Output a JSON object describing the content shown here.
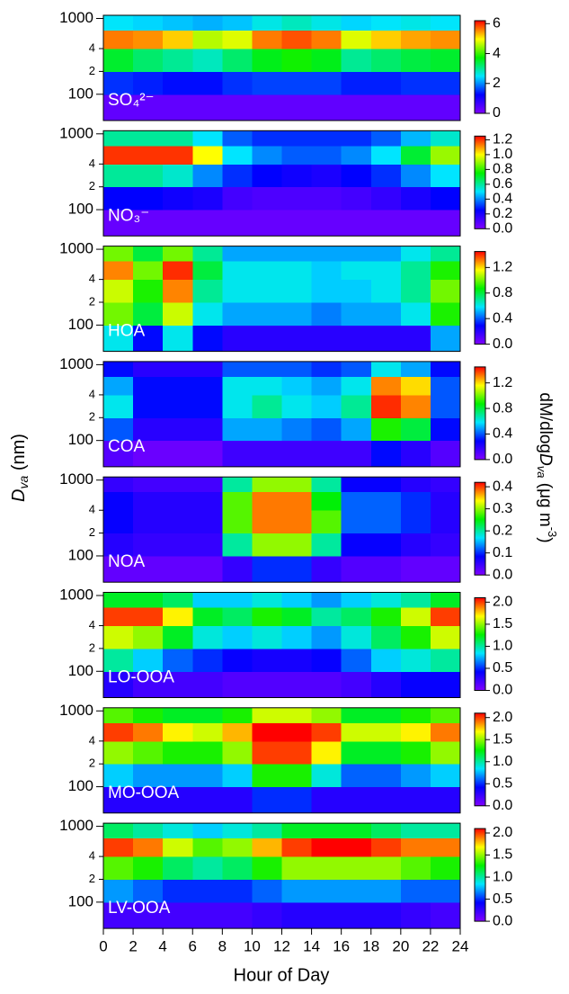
{
  "chart_data": {
    "type": "heatmap",
    "xlabel": "Hour of Day",
    "ylabel": [
      "D",
      "va",
      " (nm)"
    ],
    "colorbar_label": [
      "dM/dlog",
      "D",
      "va",
      " (μg m",
      "-3",
      ")"
    ],
    "xlim": [
      0,
      24
    ],
    "xticks": [
      0,
      2,
      4,
      6,
      8,
      10,
      12,
      14,
      16,
      18,
      20,
      22,
      24
    ],
    "xbins": [
      0,
      2,
      4,
      6,
      8,
      10,
      12,
      14,
      16,
      18,
      20,
      22,
      24
    ],
    "ylim": [
      45,
      1100
    ],
    "log_y": true,
    "yticks": [
      100,
      {
        "value": 200,
        "label": "2"
      },
      {
        "value": 400,
        "label": "4"
      },
      1000
    ],
    "ybins": [
      45,
      100,
      200,
      400,
      700,
      1100
    ],
    "colormap": [
      "#8000ff",
      "#0000ff",
      "#00e5ff",
      "#00f000",
      "#ffff00",
      "#ff0000"
    ],
    "panels": [
      {
        "label": "SO₄²⁻",
        "zlim": [
          0,
          6.2
        ],
        "zticks": [
          0,
          2,
          4,
          6
        ],
        "z": [
          [
            0.3,
            0.3,
            0.3,
            0.3,
            0.3,
            0.3,
            0.3,
            0.3,
            0.3,
            0.3,
            0.3,
            0.3
          ],
          [
            1.5,
            1.4,
            1.3,
            1.3,
            1.5,
            1.6,
            1.6,
            1.6,
            1.4,
            1.4,
            1.5,
            1.5
          ],
          [
            3.5,
            3.2,
            3.0,
            2.8,
            3.2,
            3.6,
            3.8,
            3.6,
            3.0,
            3.2,
            3.4,
            3.5
          ],
          [
            5.6,
            5.5,
            5.2,
            4.6,
            4.8,
            5.6,
            5.8,
            5.6,
            4.8,
            5.2,
            5.4,
            5.5
          ],
          [
            2.5,
            2.4,
            2.3,
            2.2,
            2.3,
            2.6,
            2.8,
            2.6,
            2.4,
            2.5,
            2.6,
            2.5
          ]
        ]
      },
      {
        "label": "NO₃⁻",
        "zlim": [
          0,
          1.25
        ],
        "zticks": [
          {
            "value": 0,
            "label": "0.0"
          },
          0.2,
          0.4,
          0.6,
          0.8,
          {
            "value": 1,
            "label": "1.0"
          },
          1.2
        ],
        "z": [
          [
            0.05,
            0.05,
            0.05,
            0.05,
            0.05,
            0.05,
            0.05,
            0.05,
            0.05,
            0.05,
            0.05,
            0.05
          ],
          [
            0.25,
            0.25,
            0.22,
            0.2,
            0.12,
            0.1,
            0.1,
            0.1,
            0.12,
            0.15,
            0.2,
            0.25
          ],
          [
            0.6,
            0.6,
            0.55,
            0.4,
            0.3,
            0.25,
            0.22,
            0.2,
            0.25,
            0.3,
            0.4,
            0.5
          ],
          [
            1.2,
            1.2,
            1.2,
            1.0,
            0.5,
            0.4,
            0.35,
            0.35,
            0.4,
            0.5,
            0.7,
            0.9
          ],
          [
            0.6,
            0.6,
            0.6,
            0.5,
            0.35,
            0.3,
            0.3,
            0.3,
            0.3,
            0.35,
            0.45,
            0.55
          ]
        ]
      },
      {
        "label": "HOA",
        "zlim": [
          0,
          1.45
        ],
        "zticks": [
          {
            "value": 0,
            "label": "0.0"
          },
          0.4,
          0.8,
          1.2
        ],
        "z": [
          [
            0.6,
            0.3,
            0.6,
            0.3,
            0.2,
            0.2,
            0.2,
            0.2,
            0.2,
            0.2,
            0.2,
            0.5
          ],
          [
            1.0,
            0.8,
            1.1,
            0.6,
            0.5,
            0.5,
            0.5,
            0.45,
            0.5,
            0.5,
            0.6,
            0.9
          ],
          [
            1.1,
            0.9,
            1.3,
            0.7,
            0.6,
            0.6,
            0.6,
            0.55,
            0.55,
            0.6,
            0.7,
            1.0
          ],
          [
            1.3,
            1.0,
            1.4,
            0.8,
            0.6,
            0.6,
            0.6,
            0.55,
            0.6,
            0.6,
            0.7,
            0.9
          ],
          [
            1.0,
            0.8,
            1.0,
            0.7,
            0.5,
            0.5,
            0.5,
            0.5,
            0.5,
            0.5,
            0.6,
            0.7
          ]
        ]
      },
      {
        "label": "COA",
        "zlim": [
          0,
          1.45
        ],
        "zticks": [
          {
            "value": 0,
            "label": "0.0"
          },
          0.4,
          0.8,
          1.2
        ],
        "z": [
          [
            0.1,
            0.05,
            0.05,
            0.05,
            0.15,
            0.15,
            0.15,
            0.15,
            0.15,
            0.3,
            0.2,
            0.1
          ],
          [
            0.4,
            0.2,
            0.2,
            0.2,
            0.5,
            0.5,
            0.45,
            0.4,
            0.5,
            0.9,
            0.8,
            0.3
          ],
          [
            0.6,
            0.3,
            0.3,
            0.3,
            0.6,
            0.7,
            0.6,
            0.55,
            0.7,
            1.4,
            1.3,
            0.4
          ],
          [
            0.5,
            0.3,
            0.3,
            0.3,
            0.6,
            0.6,
            0.55,
            0.5,
            0.6,
            1.3,
            1.2,
            0.4
          ],
          [
            0.3,
            0.2,
            0.2,
            0.2,
            0.4,
            0.4,
            0.4,
            0.35,
            0.4,
            0.6,
            0.5,
            0.3
          ]
        ]
      },
      {
        "label": "NOA",
        "zlim": [
          0,
          0.42
        ],
        "zticks": [
          {
            "value": 0,
            "label": "0.0"
          },
          0.1,
          0.2,
          0.3,
          0.4
        ],
        "z": [
          [
            0.02,
            0.02,
            0.02,
            0.02,
            0.05,
            0.1,
            0.1,
            0.05,
            0.03,
            0.03,
            0.02,
            0.02
          ],
          [
            0.06,
            0.05,
            0.05,
            0.05,
            0.2,
            0.3,
            0.3,
            0.2,
            0.08,
            0.08,
            0.06,
            0.05
          ],
          [
            0.08,
            0.06,
            0.06,
            0.06,
            0.28,
            0.38,
            0.38,
            0.28,
            0.12,
            0.12,
            0.1,
            0.06
          ],
          [
            0.08,
            0.06,
            0.06,
            0.06,
            0.28,
            0.38,
            0.38,
            0.25,
            0.12,
            0.12,
            0.1,
            0.06
          ],
          [
            0.05,
            0.04,
            0.04,
            0.04,
            0.2,
            0.3,
            0.3,
            0.2,
            0.08,
            0.08,
            0.06,
            0.05
          ]
        ]
      },
      {
        "label": "LO-OOA",
        "zlim": [
          0,
          2.1
        ],
        "zticks": [
          {
            "value": 0,
            "label": "0.0"
          },
          0.5,
          {
            "value": 1,
            "label": "1.0"
          },
          1.5,
          {
            "value": 2,
            "label": "2.0"
          }
        ],
        "z": [
          [
            0.3,
            0.2,
            0.2,
            0.2,
            0.15,
            0.15,
            0.15,
            0.15,
            0.2,
            0.3,
            0.4,
            0.4
          ],
          [
            1.0,
            0.8,
            0.6,
            0.5,
            0.4,
            0.35,
            0.35,
            0.4,
            0.6,
            0.8,
            0.9,
            1.0
          ],
          [
            1.6,
            1.5,
            1.2,
            0.9,
            0.8,
            0.9,
            0.8,
            0.7,
            0.9,
            1.1,
            1.3,
            1.6
          ],
          [
            2.0,
            2.0,
            1.7,
            1.2,
            1.1,
            1.3,
            1.2,
            1.0,
            1.1,
            1.3,
            1.6,
            2.0
          ],
          [
            1.2,
            1.2,
            1.1,
            0.8,
            0.8,
            0.9,
            0.8,
            0.7,
            0.8,
            0.9,
            1.0,
            1.2
          ]
        ]
      },
      {
        "label": "MO-OOA",
        "zlim": [
          0,
          2.1
        ],
        "zticks": [
          {
            "value": 0,
            "label": "0.0"
          },
          0.5,
          {
            "value": 1,
            "label": "1.0"
          },
          1.5,
          {
            "value": 2,
            "label": "2.0"
          }
        ],
        "z": [
          [
            0.3,
            0.3,
            0.3,
            0.3,
            0.3,
            0.5,
            0.5,
            0.3,
            0.3,
            0.3,
            0.3,
            0.3
          ],
          [
            0.8,
            0.7,
            0.7,
            0.7,
            0.8,
            1.3,
            1.3,
            0.9,
            0.6,
            0.6,
            0.7,
            0.8
          ],
          [
            1.5,
            1.4,
            1.3,
            1.3,
            1.5,
            2.0,
            2.0,
            1.7,
            1.2,
            1.2,
            1.3,
            1.5
          ],
          [
            2.0,
            1.9,
            1.7,
            1.6,
            1.8,
            2.1,
            2.1,
            2.0,
            1.6,
            1.6,
            1.7,
            1.9
          ],
          [
            1.4,
            1.3,
            1.2,
            1.2,
            1.3,
            1.6,
            1.6,
            1.5,
            1.2,
            1.2,
            1.3,
            1.4
          ]
        ]
      },
      {
        "label": "LV-OOA",
        "zlim": [
          0,
          2.1
        ],
        "zticks": [
          {
            "value": 0,
            "label": "0.0"
          },
          0.5,
          {
            "value": 1,
            "label": "1.0"
          },
          1.5,
          {
            "value": 2,
            "label": "2.0"
          }
        ],
        "z": [
          [
            0.2,
            0.2,
            0.2,
            0.2,
            0.2,
            0.25,
            0.3,
            0.3,
            0.3,
            0.3,
            0.25,
            0.2
          ],
          [
            0.7,
            0.6,
            0.5,
            0.5,
            0.5,
            0.6,
            0.7,
            0.7,
            0.7,
            0.7,
            0.6,
            0.6
          ],
          [
            1.4,
            1.3,
            1.1,
            1.0,
            1.1,
            1.3,
            1.5,
            1.5,
            1.5,
            1.5,
            1.4,
            1.3
          ],
          [
            2.0,
            1.9,
            1.6,
            1.4,
            1.5,
            1.8,
            2.0,
            2.1,
            2.1,
            2.0,
            1.9,
            1.9
          ],
          [
            1.1,
            1.0,
            0.9,
            0.8,
            0.9,
            1.0,
            1.2,
            1.2,
            1.2,
            1.1,
            1.0,
            1.0
          ]
        ]
      }
    ]
  }
}
